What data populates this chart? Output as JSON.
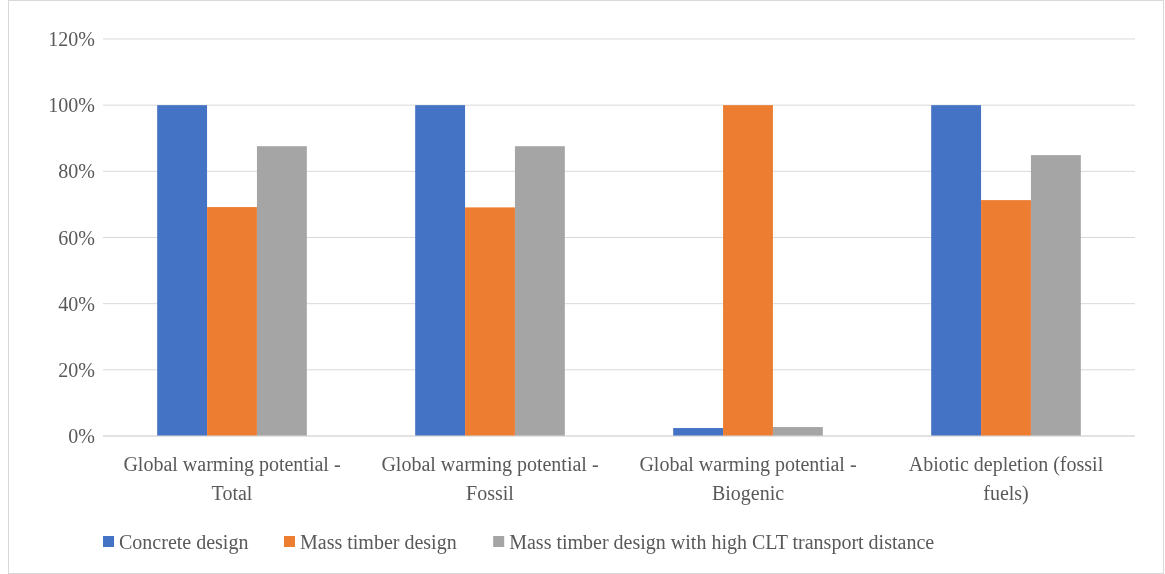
{
  "chart_data": {
    "type": "bar",
    "categories": [
      "Global warming potential - Total",
      "Global warming potential - Fossil",
      "Global warming potential - Biogenic",
      "Abiotic depletion (fossil fuels)"
    ],
    "series": [
      {
        "name": "Concrete design",
        "color": "#4472c4",
        "values": [
          100,
          100,
          2.4,
          100
        ]
      },
      {
        "name": "Mass timber design",
        "color": "#ed7d31",
        "values": [
          69.2,
          69.1,
          100,
          71.3
        ]
      },
      {
        "name": "Mass timber design with high CLT transport distance",
        "color": "#a5a5a5",
        "values": [
          87.6,
          87.6,
          2.7,
          84.9
        ]
      }
    ],
    "ylim": [
      0,
      120
    ],
    "yticks": [
      {
        "value": 0,
        "label": "0%"
      },
      {
        "value": 20,
        "label": "20%"
      },
      {
        "value": 40,
        "label": "40%"
      },
      {
        "value": 60,
        "label": "60%"
      },
      {
        "value": 80,
        "label": "80%"
      },
      {
        "value": 100,
        "label": "100%"
      },
      {
        "value": 120,
        "label": "120%"
      }
    ],
    "grid": "y",
    "legend": "bottom"
  }
}
